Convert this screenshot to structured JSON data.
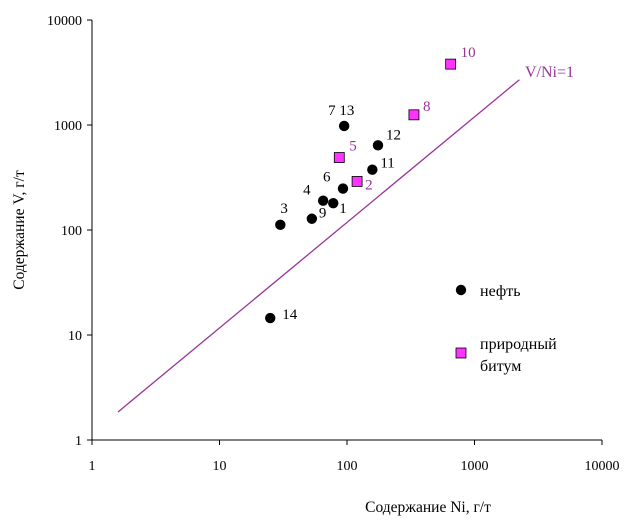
{
  "chart_data": {
    "type": "scatter",
    "title": "",
    "xlabel": "Содержание Ni, г/т",
    "ylabel": "Содержание V, г/т",
    "xscale": "log",
    "yscale": "log",
    "xlim": [
      1,
      10000
    ],
    "ylim": [
      1,
      10000
    ],
    "x_ticks": [
      "1",
      "10",
      "100",
      "1000",
      "10000"
    ],
    "y_ticks": [
      "1",
      "10",
      "100",
      "1000",
      "10000"
    ],
    "grid": false,
    "legend_position": "right",
    "colors": {
      "oil": "#000000",
      "bitumen": "#ff33ff",
      "bitumen_label": "#993399",
      "line": "#993399"
    },
    "series": [
      {
        "name": "нефть",
        "marker": "circle",
        "points": [
          {
            "label": "1",
            "x": 78,
            "y": 180
          },
          {
            "label": "3",
            "x": 30,
            "y": 112
          },
          {
            "label": "4",
            "x": 65,
            "y": 190
          },
          {
            "label": "6",
            "x": 93,
            "y": 248
          },
          {
            "label": "7 13",
            "x": 95,
            "y": 980
          },
          {
            "label": "9",
            "x": 53,
            "y": 128
          },
          {
            "label": "11",
            "x": 158,
            "y": 375
          },
          {
            "label": "12",
            "x": 175,
            "y": 640
          },
          {
            "label": "14",
            "x": 25,
            "y": 14.5
          }
        ]
      },
      {
        "name": "природный битум",
        "marker": "square",
        "points": [
          {
            "label": "2",
            "x": 120,
            "y": 290
          },
          {
            "label": "5",
            "x": 87,
            "y": 490
          },
          {
            "label": "8",
            "x": 335,
            "y": 1250
          },
          {
            "label": "10",
            "x": 650,
            "y": 3800
          }
        ]
      }
    ],
    "reference_line": {
      "label": "V/Ni=1",
      "from": [
        1.6,
        1.85
      ],
      "to": [
        2250,
        2700
      ]
    },
    "legend": [
      {
        "text": "нефть",
        "marker": "circle"
      },
      {
        "text": "природный\nбитум",
        "marker": "square"
      }
    ]
  }
}
